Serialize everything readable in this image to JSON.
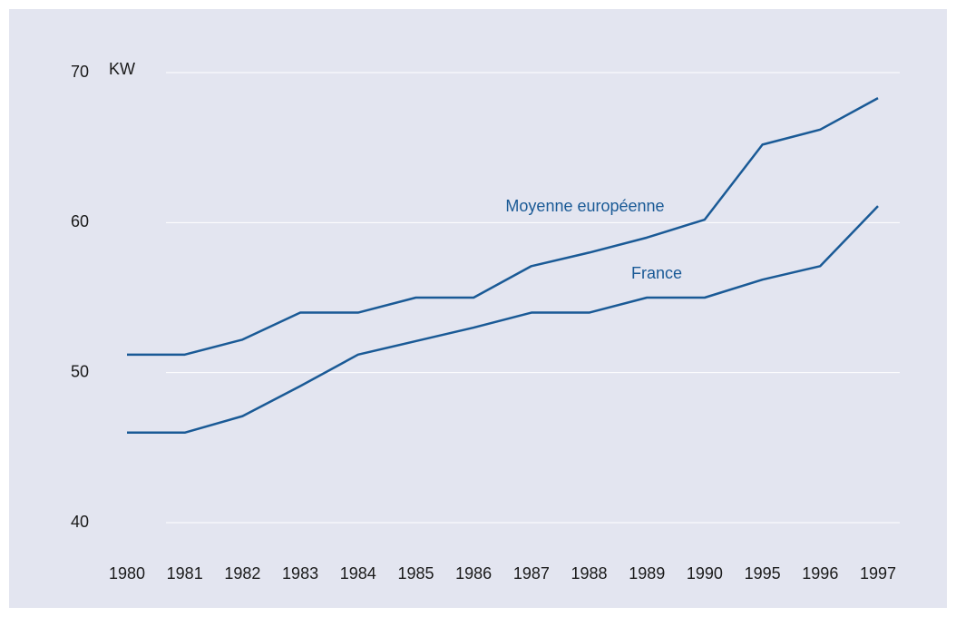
{
  "chart_data": {
    "type": "line",
    "y_label": "KW",
    "categories": [
      "1980",
      "1981",
      "1982",
      "1983",
      "1984",
      "1985",
      "1986",
      "1987",
      "1988",
      "1989",
      "1990",
      "1995",
      "1996",
      "1997"
    ],
    "series": [
      {
        "name": "Moyenne européenne",
        "color": "#1a5a96",
        "values": [
          51.2,
          51.2,
          52.2,
          54,
          54,
          55,
          55,
          57.1,
          58,
          59,
          60.2,
          65.2,
          66.2,
          68.3
        ]
      },
      {
        "name": "France",
        "color": "#1a5a96",
        "values": [
          46,
          46,
          47.1,
          49.1,
          51.2,
          52.1,
          53,
          54,
          54,
          55,
          55,
          56.2,
          57.1,
          61.1
        ]
      }
    ],
    "ylim": [
      40,
      70
    ],
    "yticks": [
      40,
      50,
      60,
      70
    ],
    "grid": true
  }
}
